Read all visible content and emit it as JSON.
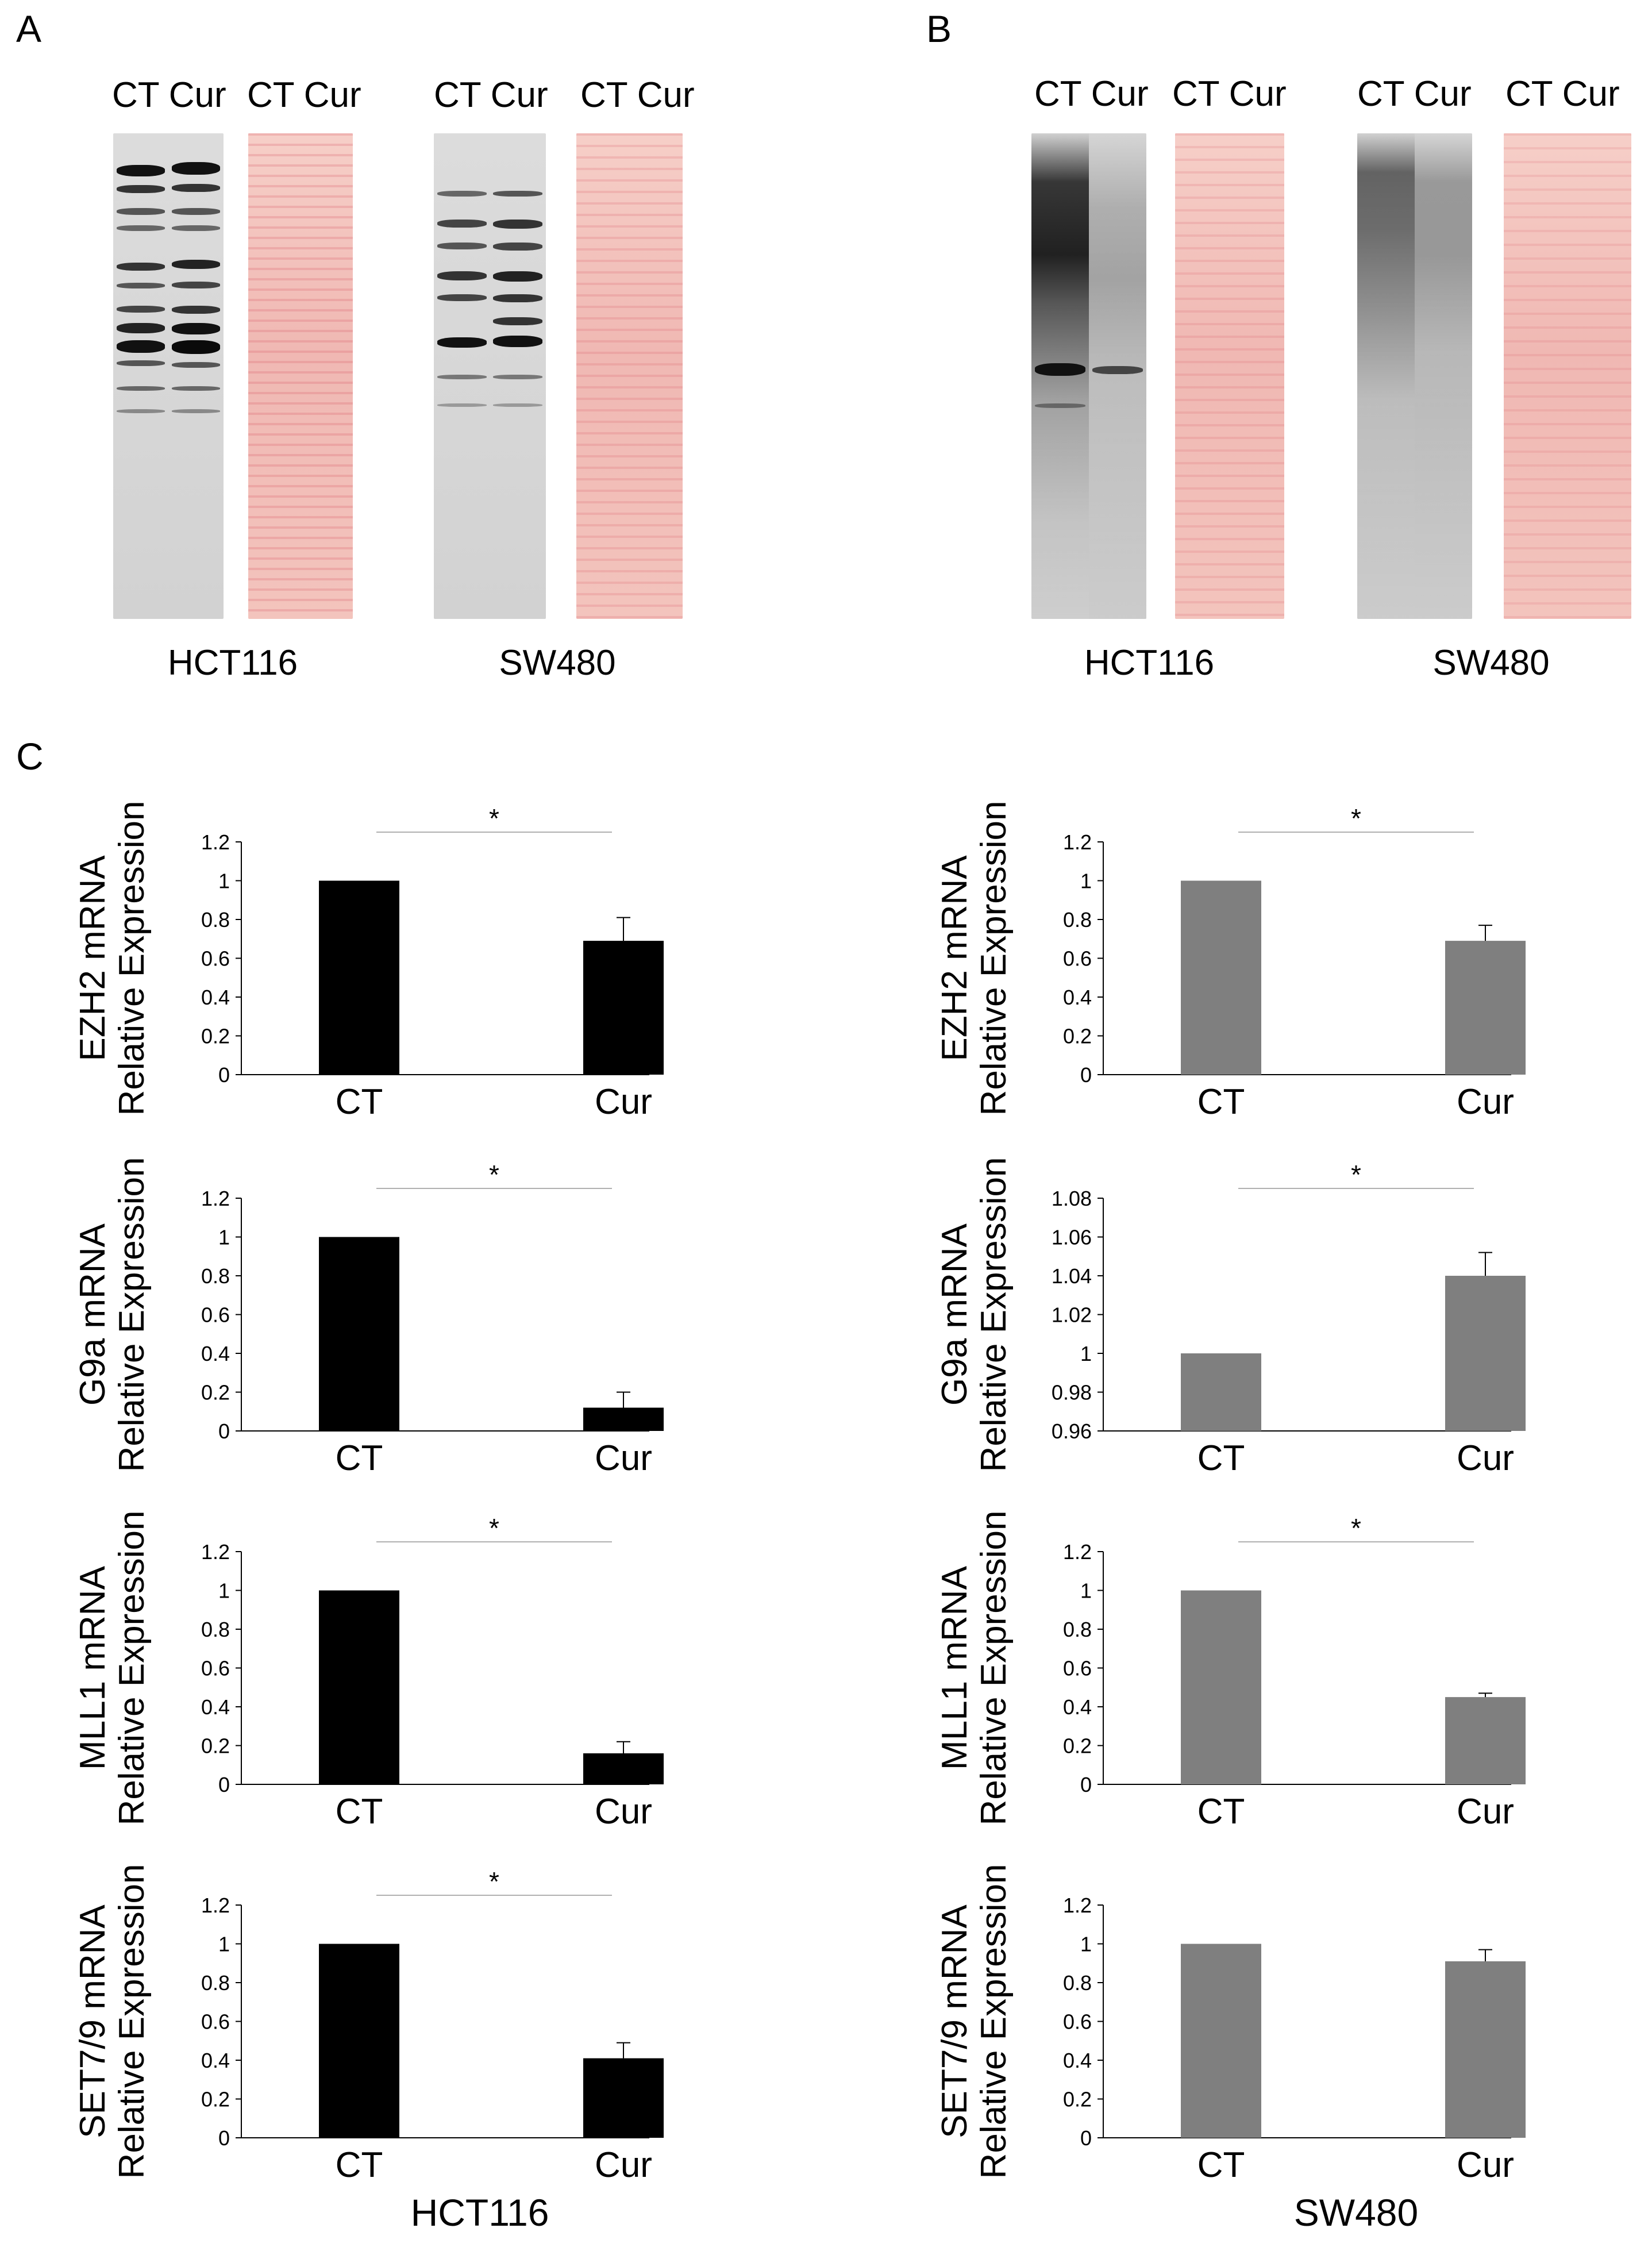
{
  "panels": {
    "A": {
      "letter": "A",
      "blots": [
        {
          "lane_header_wb": "CT Cur",
          "lane_header_ps": "CT Cur",
          "cell_line": "HCT116"
        },
        {
          "lane_header_wb": "CT Cur",
          "lane_header_ps": "CT Cur",
          "cell_line": "SW480"
        }
      ]
    },
    "B": {
      "letter": "B",
      "blots": [
        {
          "lane_header_wb": "CT Cur",
          "lane_header_ps": "CT Cur",
          "cell_line": "HCT116"
        },
        {
          "lane_header_wb": "CT Cur",
          "lane_header_ps": "CT Cur",
          "cell_line": "SW480"
        }
      ]
    },
    "C": {
      "letter": "C",
      "footer_left": "HCT116",
      "footer_right": "SW480"
    }
  },
  "colors": {
    "hct116_bar": "#000000",
    "sw480_bar": "#7f7f7f",
    "axis": "#000000",
    "sig_line": "#b0b0b0"
  },
  "chart_data": [
    {
      "type": "bar",
      "cell_line": "HCT116",
      "ylabel_line1": "EZH2 mRNA",
      "ylabel_line2": "Relative Expression",
      "categories": [
        "CT",
        "Cur"
      ],
      "values": [
        1,
        0.69
      ],
      "errors": [
        0,
        0.12
      ],
      "ylim": [
        0,
        1.2
      ],
      "yticks": [
        "0",
        "0.2",
        "0.4",
        "0.6",
        "0.8",
        "1",
        "1.2"
      ],
      "significance": "*",
      "color": "#000000"
    },
    {
      "type": "bar",
      "cell_line": "SW480",
      "ylabel_line1": "EZH2 mRNA",
      "ylabel_line2": "Relative Expression",
      "categories": [
        "CT",
        "Cur"
      ],
      "values": [
        1,
        0.69
      ],
      "errors": [
        0,
        0.08
      ],
      "ylim": [
        0,
        1.2
      ],
      "yticks": [
        "0",
        "0.2",
        "0.4",
        "0.6",
        "0.8",
        "1",
        "1.2"
      ],
      "significance": "*",
      "color": "#7f7f7f"
    },
    {
      "type": "bar",
      "cell_line": "HCT116",
      "ylabel_line1": "G9a mRNA",
      "ylabel_line2": "Relative Expression",
      "categories": [
        "CT",
        "Cur"
      ],
      "values": [
        1,
        0.12
      ],
      "errors": [
        0,
        0.08
      ],
      "ylim": [
        0,
        1.2
      ],
      "yticks": [
        "0",
        "0.2",
        "0.4",
        "0.6",
        "0.8",
        "1",
        "1.2"
      ],
      "significance": "*",
      "color": "#000000"
    },
    {
      "type": "bar",
      "cell_line": "SW480",
      "ylabel_line1": "G9a mRNA",
      "ylabel_line2": "Relative Expression",
      "categories": [
        "CT",
        "Cur"
      ],
      "values": [
        1,
        1.04
      ],
      "errors": [
        0,
        0.012
      ],
      "ylim": [
        0.96,
        1.08
      ],
      "yticks": [
        "0.96",
        "0.98",
        "1",
        "1.02",
        "1.04",
        "1.06",
        "1.08"
      ],
      "significance": "*",
      "color": "#7f7f7f"
    },
    {
      "type": "bar",
      "cell_line": "HCT116",
      "ylabel_line1": "MLL1 mRNA",
      "ylabel_line2": "Relative Expression",
      "categories": [
        "CT",
        "Cur"
      ],
      "values": [
        1,
        0.16
      ],
      "errors": [
        0,
        0.06
      ],
      "ylim": [
        0,
        1.2
      ],
      "yticks": [
        "0",
        "0.2",
        "0.4",
        "0.6",
        "0.8",
        "1",
        "1.2"
      ],
      "significance": "*",
      "color": "#000000"
    },
    {
      "type": "bar",
      "cell_line": "SW480",
      "ylabel_line1": "MLL1 mRNA",
      "ylabel_line2": "Relative Expression",
      "categories": [
        "CT",
        "Cur"
      ],
      "values": [
        1,
        0.45
      ],
      "errors": [
        0,
        0.02
      ],
      "ylim": [
        0,
        1.2
      ],
      "yticks": [
        "0",
        "0.2",
        "0.4",
        "0.6",
        "0.8",
        "1",
        "1.2"
      ],
      "significance": "*",
      "color": "#7f7f7f"
    },
    {
      "type": "bar",
      "cell_line": "HCT116",
      "ylabel_line1": "SET7/9 mRNA",
      "ylabel_line2": "Relative Expression",
      "categories": [
        "CT",
        "Cur"
      ],
      "values": [
        1,
        0.41
      ],
      "errors": [
        0,
        0.08
      ],
      "ylim": [
        0,
        1.2
      ],
      "yticks": [
        "0",
        "0.2",
        "0.4",
        "0.6",
        "0.8",
        "1",
        "1.2"
      ],
      "significance": "*",
      "color": "#000000"
    },
    {
      "type": "bar",
      "cell_line": "SW480",
      "ylabel_line1": "SET7/9 mRNA",
      "ylabel_line2": "Relative Expression",
      "categories": [
        "CT",
        "Cur"
      ],
      "values": [
        1,
        0.91
      ],
      "errors": [
        0,
        0.06
      ],
      "ylim": [
        0,
        1.2
      ],
      "yticks": [
        "0",
        "0.2",
        "0.4",
        "0.6",
        "0.8",
        "1",
        "1.2"
      ],
      "significance": "",
      "color": "#7f7f7f"
    }
  ]
}
